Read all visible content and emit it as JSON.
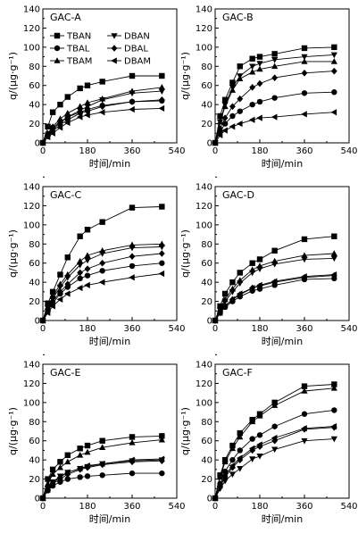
{
  "series_names": [
    "TBAN",
    "TBAL",
    "TBAM",
    "DBAN",
    "DBAL",
    "DBAM"
  ],
  "markers": [
    "square",
    "circle",
    "triangle-up",
    "triangle-down",
    "diamond",
    "triangle-left"
  ],
  "x_label": "时间/min",
  "y_label": "q/(μg·g⁻¹)",
  "x_ticks": [
    "0",
    "180",
    "360",
    "540"
  ],
  "y_ticks": [
    "0",
    "20",
    "40",
    "60",
    "80",
    "100",
    "120",
    "140"
  ],
  "chart_data": [
    {
      "type": "line",
      "title": "GAC-A",
      "x": [
        0,
        20,
        40,
        70,
        100,
        150,
        180,
        240,
        360,
        480
      ],
      "xlim": [
        0,
        540
      ],
      "ylim": [
        0,
        140
      ],
      "series": [
        {
          "name": "TBAN",
          "values": [
            0,
            17,
            32,
            40,
            48,
            57,
            60,
            64,
            70,
            70
          ]
        },
        {
          "name": "TBAL",
          "values": [
            0,
            9,
            16,
            22,
            27,
            32,
            35,
            39,
            43,
            44
          ]
        },
        {
          "name": "TBAM",
          "values": [
            0,
            10,
            17,
            25,
            31,
            38,
            42,
            46,
            54,
            58
          ]
        },
        {
          "name": "DBAN",
          "values": [
            0,
            8,
            14,
            21,
            27,
            34,
            38,
            45,
            52,
            54
          ]
        },
        {
          "name": "DBAL",
          "values": [
            0,
            7,
            12,
            19,
            24,
            31,
            33,
            38,
            43,
            45
          ]
        },
        {
          "name": "DBAM",
          "values": [
            0,
            6,
            10,
            16,
            21,
            27,
            29,
            32,
            35,
            36
          ]
        }
      ]
    },
    {
      "type": "line",
      "title": "GAC-B",
      "x": [
        0,
        20,
        40,
        70,
        100,
        150,
        180,
        240,
        360,
        480
      ],
      "xlim": [
        0,
        540
      ],
      "ylim": [
        0,
        140
      ],
      "series": [
        {
          "name": "TBAN",
          "values": [
            0,
            28,
            45,
            63,
            80,
            88,
            90,
            93,
            99,
            100
          ]
        },
        {
          "name": "TBAL",
          "values": [
            0,
            12,
            20,
            28,
            33,
            40,
            43,
            47,
            52,
            53
          ]
        },
        {
          "name": "TBAM",
          "values": [
            0,
            22,
            38,
            55,
            67,
            74,
            77,
            80,
            85,
            85
          ]
        },
        {
          "name": "DBAN",
          "values": [
            0,
            22,
            40,
            58,
            70,
            80,
            83,
            87,
            90,
            92
          ]
        },
        {
          "name": "DBAL",
          "values": [
            0,
            15,
            26,
            38,
            46,
            58,
            62,
            68,
            73,
            75
          ]
        },
        {
          "name": "DBAM",
          "values": [
            0,
            8,
            13,
            17,
            20,
            24,
            26,
            27,
            30,
            32
          ]
        }
      ]
    },
    {
      "type": "line",
      "title": "GAC-C",
      "x": [
        0,
        20,
        40,
        70,
        100,
        150,
        180,
        240,
        360,
        480
      ],
      "xlim": [
        0,
        540
      ],
      "ylim": [
        0,
        140
      ],
      "series": [
        {
          "name": "TBAN",
          "values": [
            0,
            18,
            30,
            48,
            66,
            88,
            95,
            103,
            118,
            119
          ]
        },
        {
          "name": "TBAL",
          "values": [
            0,
            10,
            18,
            28,
            35,
            44,
            47,
            52,
            57,
            60
          ]
        },
        {
          "name": "TBAM",
          "values": [
            0,
            14,
            25,
            38,
            48,
            62,
            68,
            73,
            79,
            80
          ]
        },
        {
          "name": "DBAN",
          "values": [
            0,
            13,
            23,
            35,
            45,
            58,
            63,
            70,
            76,
            77
          ]
        },
        {
          "name": "DBAL",
          "values": [
            0,
            11,
            20,
            30,
            38,
            50,
            54,
            60,
            67,
            70
          ]
        },
        {
          "name": "DBAM",
          "values": [
            0,
            8,
            15,
            22,
            28,
            34,
            37,
            40,
            45,
            49
          ]
        }
      ]
    },
    {
      "type": "line",
      "title": "GAC-D",
      "x": [
        0,
        20,
        40,
        70,
        100,
        150,
        180,
        240,
        360,
        480
      ],
      "xlim": [
        0,
        540
      ],
      "ylim": [
        0,
        140
      ],
      "series": [
        {
          "name": "TBAN",
          "values": [
            0,
            15,
            28,
            40,
            50,
            60,
            64,
            73,
            85,
            88
          ]
        },
        {
          "name": "TBAL",
          "values": [
            0,
            8,
            14,
            20,
            25,
            31,
            33,
            37,
            43,
            44
          ]
        },
        {
          "name": "TBAM",
          "values": [
            0,
            12,
            22,
            33,
            42,
            53,
            57,
            62,
            68,
            70
          ]
        },
        {
          "name": "DBAN",
          "values": [
            0,
            11,
            20,
            30,
            39,
            50,
            54,
            59,
            64,
            65
          ]
        },
        {
          "name": "DBAL",
          "values": [
            0,
            8,
            15,
            22,
            27,
            34,
            36,
            40,
            45,
            47
          ]
        },
        {
          "name": "DBAM",
          "values": [
            0,
            8,
            15,
            22,
            28,
            34,
            37,
            41,
            46,
            48
          ]
        }
      ]
    },
    {
      "type": "line",
      "title": "GAC-E",
      "x": [
        0,
        20,
        40,
        70,
        100,
        150,
        180,
        240,
        360,
        480
      ],
      "xlim": [
        0,
        540
      ],
      "ylim": [
        0,
        140
      ],
      "series": [
        {
          "name": "TBAN",
          "values": [
            0,
            20,
            30,
            38,
            45,
            52,
            55,
            60,
            64,
            65
          ]
        },
        {
          "name": "TBAL",
          "values": [
            0,
            8,
            13,
            17,
            20,
            22,
            23,
            24,
            26,
            26
          ]
        },
        {
          "name": "TBAM",
          "values": [
            0,
            15,
            25,
            32,
            38,
            45,
            48,
            53,
            58,
            61
          ]
        },
        {
          "name": "DBAN",
          "values": [
            0,
            10,
            17,
            23,
            27,
            31,
            33,
            36,
            39,
            40
          ]
        },
        {
          "name": "DBAL",
          "values": [
            0,
            9,
            15,
            20,
            25,
            30,
            32,
            35,
            38,
            39
          ]
        },
        {
          "name": "DBAM",
          "values": [
            0,
            9,
            16,
            22,
            27,
            31,
            34,
            36,
            40,
            41
          ]
        }
      ]
    },
    {
      "type": "line",
      "title": "GAC-F",
      "x": [
        0,
        20,
        40,
        70,
        100,
        150,
        180,
        240,
        360,
        480
      ],
      "xlim": [
        0,
        540
      ],
      "ylim": [
        0,
        140
      ],
      "series": [
        {
          "name": "TBAN",
          "values": [
            0,
            24,
            40,
            55,
            68,
            82,
            88,
            100,
            117,
            119
          ]
        },
        {
          "name": "TBAL",
          "values": [
            0,
            15,
            28,
            40,
            50,
            62,
            66,
            75,
            88,
            92
          ]
        },
        {
          "name": "TBAM",
          "values": [
            0,
            22,
            38,
            52,
            64,
            80,
            86,
            97,
            112,
            115
          ]
        },
        {
          "name": "DBAN",
          "values": [
            0,
            10,
            18,
            25,
            31,
            41,
            44,
            51,
            60,
            62
          ]
        },
        {
          "name": "DBAL",
          "values": [
            0,
            12,
            22,
            32,
            40,
            50,
            54,
            60,
            72,
            74
          ]
        },
        {
          "name": "DBAM",
          "values": [
            0,
            13,
            24,
            34,
            42,
            52,
            56,
            63,
            73,
            75
          ]
        }
      ]
    }
  ]
}
